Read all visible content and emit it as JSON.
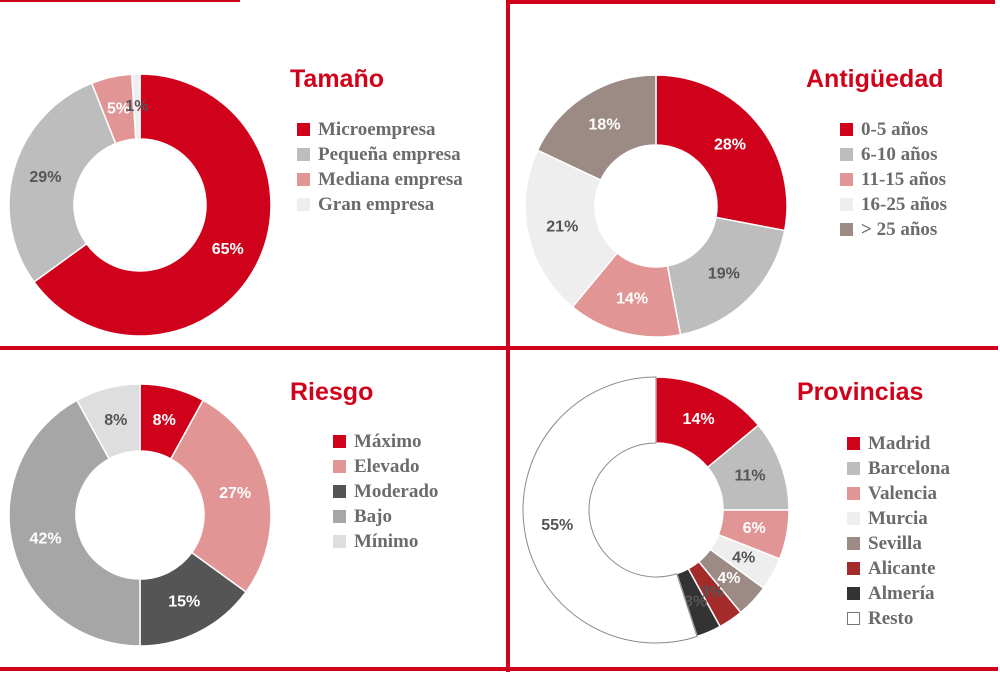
{
  "chart_data": [
    {
      "type": "pie",
      "title": "Tamaño",
      "categories": [
        "Microempresa",
        "Pequeña empresa",
        "Mediana empresa",
        "Gran empresa"
      ],
      "values": [
        65,
        29,
        5,
        1
      ],
      "value_labels": [
        "65%",
        "29%",
        "5%",
        "1%"
      ],
      "colors": [
        "#d0021b",
        "#bdbdbd",
        "#e29595",
        "#eeeeee"
      ],
      "label_colors": [
        "#ffffff",
        "#555555",
        "#ffffff",
        "#555555"
      ],
      "legend_position": "right"
    },
    {
      "type": "pie",
      "title": "Antigüedad",
      "categories": [
        "0-5 años",
        "6-10 años",
        "11-15 años",
        "16-25 años",
        "> 25 años"
      ],
      "values": [
        28,
        19,
        14,
        21,
        18
      ],
      "value_labels": [
        "28%",
        "19%",
        "14%",
        "21%",
        "18%"
      ],
      "colors": [
        "#d0021b",
        "#bdbdbd",
        "#e29595",
        "#eeeeee",
        "#9c8a84"
      ],
      "label_colors": [
        "#ffffff",
        "#555555",
        "#ffffff",
        "#555555",
        "#ffffff"
      ],
      "legend_position": "right"
    },
    {
      "type": "pie",
      "title": "Riesgo",
      "categories": [
        "Máximo",
        "Elevado",
        "Moderado",
        "Bajo",
        "Mínimo"
      ],
      "values": [
        8,
        27,
        15,
        42,
        8
      ],
      "value_labels": [
        "8%",
        "27%",
        "15%",
        "42%",
        "8%"
      ],
      "colors": [
        "#d0021b",
        "#e29595",
        "#555555",
        "#a6a6a6",
        "#dedede"
      ],
      "label_colors": [
        "#ffffff",
        "#ffffff",
        "#ffffff",
        "#ffffff",
        "#555555"
      ],
      "legend_position": "right"
    },
    {
      "type": "pie",
      "title": "Provincias",
      "categories": [
        "Madrid",
        "Barcelona",
        "Valencia",
        "Murcia",
        "Sevilla",
        "Alicante",
        "Almería",
        "Resto"
      ],
      "values": [
        14,
        11,
        6,
        4,
        4,
        3,
        3,
        55
      ],
      "value_labels": [
        "14%",
        "11%",
        "6%",
        "4%",
        "4%",
        "3%",
        "3%",
        "55%"
      ],
      "colors": [
        "#d0021b",
        "#bdbdbd",
        "#e29595",
        "#eeeeee",
        "#9c8a84",
        "#a52a2a",
        "#333333",
        "#ffffff"
      ],
      "label_colors": [
        "#ffffff",
        "#555555",
        "#ffffff",
        "#555555",
        "#ffffff",
        "#555555",
        "#555555",
        "#555555"
      ],
      "legend_position": "right"
    }
  ]
}
